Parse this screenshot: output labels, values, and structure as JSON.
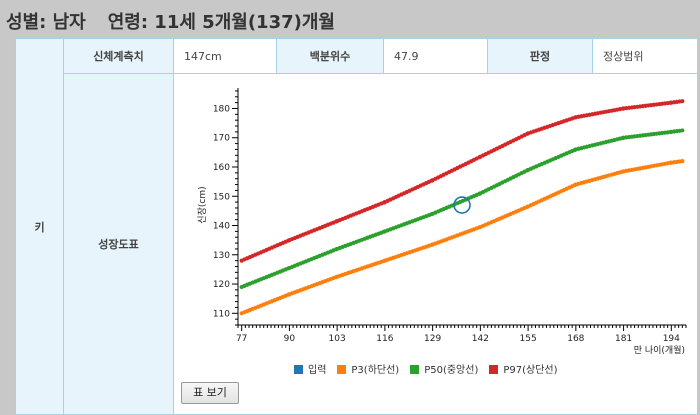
{
  "header": {
    "sex": "성별: 남자",
    "age": "연령: 11세 5개월(137)개월"
  },
  "table": {
    "row_label": "키",
    "measure_label": "신체계측치",
    "measure_value": "147cm",
    "percentile_label": "백분위수",
    "percentile_value": "47.9",
    "judgement_label": "판정",
    "judgement_value": "정상범위",
    "chart_label": "성장도표"
  },
  "button": {
    "table_view": "표 보기"
  },
  "chart_data": {
    "type": "line",
    "xlabel": "만 나이(개월)",
    "ylabel": "신장(cm)",
    "xlim": [
      76,
      198
    ],
    "ylim": [
      106,
      187
    ],
    "x_ticks": [
      77,
      90,
      103,
      116,
      129,
      142,
      155,
      168,
      181,
      194
    ],
    "y_ticks": [
      110,
      120,
      130,
      140,
      150,
      160,
      170,
      180
    ],
    "series": [
      {
        "name": "입력",
        "color": "#1f77b4",
        "points": [
          [
            137,
            147
          ]
        ]
      },
      {
        "name": "P3(하단선)",
        "color": "#ff7f0e",
        "points": [
          [
            77,
            110
          ],
          [
            90,
            116.5
          ],
          [
            103,
            122.5
          ],
          [
            116,
            128
          ],
          [
            129,
            133.5
          ],
          [
            142,
            139.5
          ],
          [
            155,
            146.5
          ],
          [
            168,
            154
          ],
          [
            181,
            158.5
          ],
          [
            194,
            161.5
          ],
          [
            197,
            162
          ]
        ]
      },
      {
        "name": "P50(중앙선)",
        "color": "#2ca02c",
        "points": [
          [
            77,
            119
          ],
          [
            90,
            125.5
          ],
          [
            103,
            132
          ],
          [
            116,
            138
          ],
          [
            129,
            144
          ],
          [
            142,
            151
          ],
          [
            155,
            159
          ],
          [
            168,
            166
          ],
          [
            181,
            170
          ],
          [
            194,
            172
          ],
          [
            197,
            172.5
          ]
        ]
      },
      {
        "name": "P97(상단선)",
        "color": "#d62728",
        "points": [
          [
            77,
            128
          ],
          [
            90,
            135
          ],
          [
            103,
            141.5
          ],
          [
            116,
            148
          ],
          [
            129,
            155.5
          ],
          [
            142,
            163.5
          ],
          [
            155,
            171.5
          ],
          [
            168,
            177
          ],
          [
            181,
            180
          ],
          [
            194,
            182
          ],
          [
            197,
            182.5
          ]
        ]
      }
    ]
  }
}
